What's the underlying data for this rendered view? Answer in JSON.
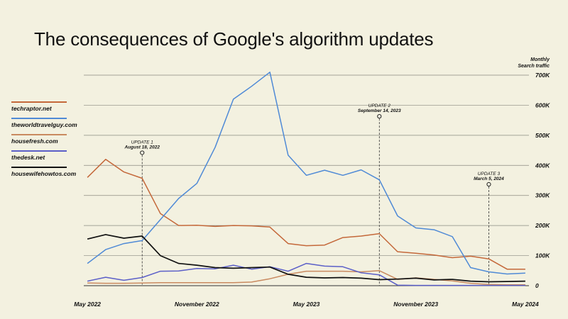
{
  "title": "The consequences of Google's algorithm updates",
  "y_unit": [
    "Monthly",
    "Search traffic"
  ],
  "chart_data": {
    "type": "line",
    "title": "The consequences of Google's algorithm updates",
    "xlabel": "",
    "ylabel": "Monthly Search traffic",
    "ylim": [
      0,
      700000
    ],
    "y_ticks": [
      {
        "value": 0,
        "label": "0"
      },
      {
        "value": 100000,
        "label": "100K"
      },
      {
        "value": 200000,
        "label": "200K"
      },
      {
        "value": 300000,
        "label": "300K"
      },
      {
        "value": 400000,
        "label": "400K"
      },
      {
        "value": 500000,
        "label": "500K"
      },
      {
        "value": 600000,
        "label": "600K"
      },
      {
        "value": 700000,
        "label": "700K"
      }
    ],
    "x_ticks": [
      {
        "value": "2022-05",
        "label": "May 2022"
      },
      {
        "value": "2022-11",
        "label": "November 2022"
      },
      {
        "value": "2023-05",
        "label": "May 2023"
      },
      {
        "value": "2023-11",
        "label": "November 2023"
      },
      {
        "value": "2024-05",
        "label": "May 2024"
      }
    ],
    "x": [
      "2022-05",
      "2022-06",
      "2022-07",
      "2022-08",
      "2022-09",
      "2022-10",
      "2022-11",
      "2022-12",
      "2023-01",
      "2023-02",
      "2023-03",
      "2023-04",
      "2023-05",
      "2023-06",
      "2023-07",
      "2023-08",
      "2023-09",
      "2023-10",
      "2023-11",
      "2023-12",
      "2024-01",
      "2024-02",
      "2024-03",
      "2024-04",
      "2024-05"
    ],
    "legend_position": "left",
    "grid": true,
    "series": [
      {
        "name": "techraptor.net",
        "color": "#c4683a",
        "values": [
          360000,
          420000,
          378000,
          357000,
          240000,
          200000,
          201000,
          197000,
          200000,
          199000,
          195000,
          140000,
          133000,
          135000,
          160000,
          165000,
          173000,
          113000,
          108000,
          102000,
          93000,
          98000,
          89000,
          55000,
          55000
        ]
      },
      {
        "name": "theworldtravelguy.com",
        "color": "#4f8ad6",
        "values": [
          74000,
          120000,
          140000,
          150000,
          220000,
          290000,
          340000,
          460000,
          620000,
          663000,
          710000,
          434000,
          367000,
          384000,
          367000,
          385000,
          352000,
          232000,
          192000,
          186000,
          163000,
          60000,
          46000,
          39000,
          42000
        ]
      },
      {
        "name": "housefresh.com",
        "color": "#c98a60",
        "values": [
          9000,
          8000,
          8000,
          9000,
          10000,
          10000,
          10000,
          10000,
          10000,
          12000,
          23000,
          38000,
          48000,
          48000,
          48000,
          46000,
          50000,
          21000,
          26000,
          21000,
          16000,
          8000,
          4000,
          3000,
          3000
        ]
      },
      {
        "name": "thedesk.net",
        "color": "#5b5fc8",
        "values": [
          15000,
          28000,
          18000,
          27000,
          48000,
          49000,
          57000,
          56000,
          68000,
          55000,
          63000,
          48000,
          74000,
          65000,
          63000,
          43000,
          36000,
          2000,
          1000,
          1000,
          1000,
          1000,
          1000,
          1000,
          1000
        ]
      },
      {
        "name": "housewifehowtos.com",
        "color": "#111111",
        "values": [
          155000,
          170000,
          158000,
          165000,
          100000,
          74000,
          68000,
          60000,
          58000,
          60000,
          62000,
          38000,
          28000,
          26000,
          27000,
          25000,
          20000,
          22000,
          25000,
          19000,
          21000,
          15000,
          13000,
          14000,
          15000
        ]
      }
    ],
    "annotations": [
      {
        "x": "2022-08",
        "y": 442000,
        "line1": "UPDATE 1",
        "line2": "August 18, 2022"
      },
      {
        "x": "2023-09",
        "y": 563000,
        "line1": "UPDATE 2",
        "line2": "September 14, 2023"
      },
      {
        "x": "2024-03",
        "y": 337000,
        "line1": "UPDATE 3",
        "line2": "March 5, 2024"
      }
    ]
  }
}
